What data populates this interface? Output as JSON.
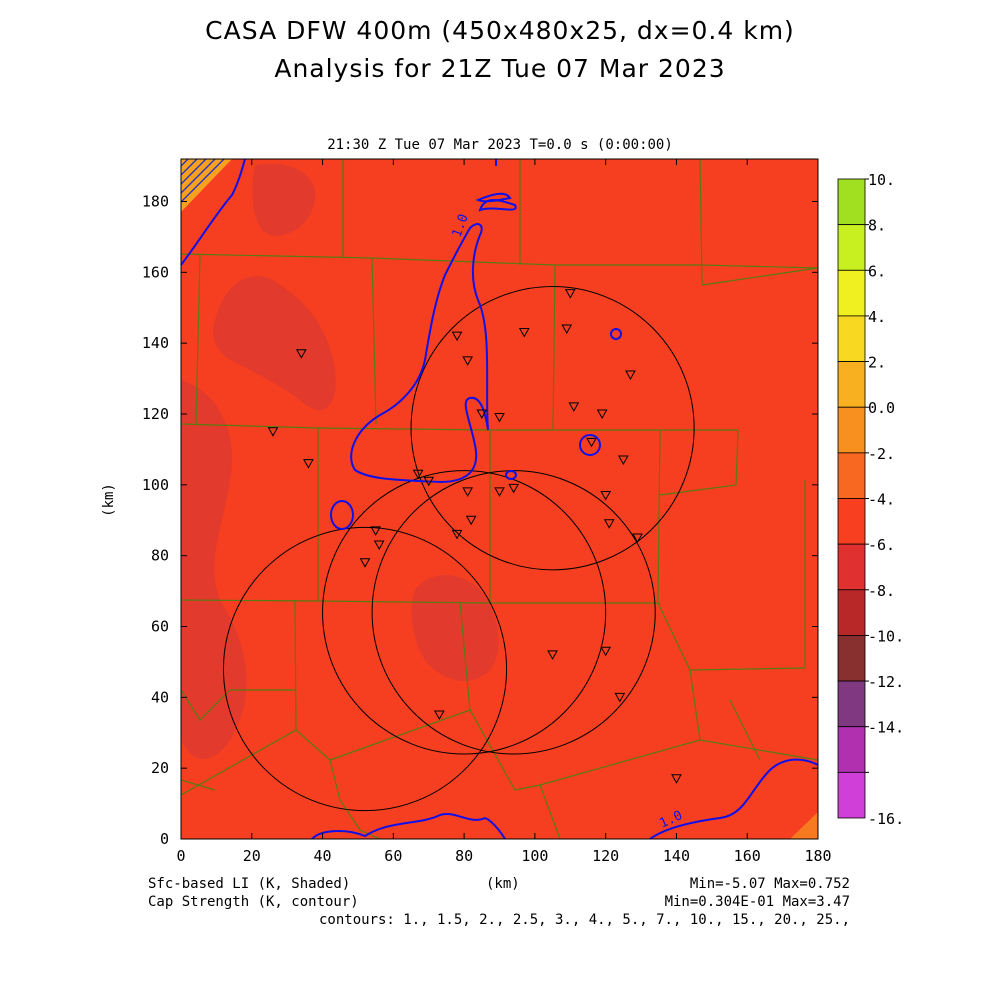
{
  "title": {
    "line1": "CASA DFW 400m (450x480x25, dx=0.4 km)",
    "line2": "Analysis for 21Z Tue 07 Mar 2023"
  },
  "panel": {
    "subtitle": "21:30 Z Tue 07 Mar 2023    T=0.0 s (0:00:00)",
    "xlabel": "(km)",
    "ylabel": "(km)",
    "xlim": [
      0,
      180
    ],
    "ylim": [
      0,
      192
    ],
    "xticks": [
      0,
      20,
      40,
      60,
      80,
      100,
      120,
      140,
      160,
      180
    ],
    "yticks": [
      0,
      20,
      40,
      60,
      80,
      100,
      120,
      140,
      160,
      180
    ],
    "xtick_labels": [
      "0",
      "20",
      "40",
      "60",
      "80",
      "100",
      "120",
      "140",
      "160",
      "180"
    ],
    "ytick_labels": [
      "0",
      "20",
      "40",
      "60",
      "80",
      "100",
      "120",
      "140",
      "160",
      "180"
    ]
  },
  "colorbar": {
    "levels": [
      10,
      8,
      6,
      4,
      2,
      0,
      -2,
      -4,
      -6,
      -8,
      -10,
      -12,
      -14,
      -16
    ],
    "labels": [
      "10.",
      "8.",
      "6.",
      "4.",
      "2.",
      "0.0",
      "-2.",
      "-4.",
      "-6.",
      "-8.",
      "-10.",
      "-12.",
      "-14.",
      "-16."
    ],
    "colors": [
      "#a0e020",
      "#c8f020",
      "#f0f020",
      "#f8d820",
      "#f8b020",
      "#f89020",
      "#f86820",
      "#f84020",
      "#e03030",
      "#b82828",
      "#883030",
      "#803880",
      "#b030b0",
      "#d040d8"
    ]
  },
  "field": {
    "background_color": "#f63f20",
    "darker_color": "#e23a2c",
    "contour_color": "#1010e8",
    "contour_label": "1.0"
  },
  "radars": [
    {
      "center": [
        105,
        116
      ],
      "radius": 40
    },
    {
      "center": [
        80,
        64
      ],
      "radius": 40
    },
    {
      "center": [
        94,
        64
      ],
      "radius": 40
    },
    {
      "center": [
        52,
        48
      ],
      "radius": 40
    }
  ],
  "stations": [
    [
      110,
      154
    ],
    [
      78,
      142
    ],
    [
      81,
      135
    ],
    [
      97,
      143
    ],
    [
      109,
      144
    ],
    [
      127,
      131
    ],
    [
      34,
      137
    ],
    [
      26,
      115
    ],
    [
      36,
      106
    ],
    [
      111,
      122
    ],
    [
      119,
      120
    ],
    [
      85,
      120
    ],
    [
      90,
      119
    ],
    [
      116,
      112
    ],
    [
      125,
      107
    ],
    [
      67,
      103
    ],
    [
      70,
      101
    ],
    [
      81,
      98
    ],
    [
      90,
      98
    ],
    [
      94,
      99
    ],
    [
      120,
      97
    ],
    [
      55,
      87
    ],
    [
      121,
      89
    ],
    [
      82,
      90
    ],
    [
      78,
      86
    ],
    [
      129,
      85
    ],
    [
      56,
      83
    ],
    [
      52,
      78
    ],
    [
      105,
      52
    ],
    [
      120,
      53
    ],
    [
      124,
      40
    ],
    [
      73,
      35
    ],
    [
      140,
      17
    ]
  ],
  "footer": {
    "left1": "Sfc-based LI (K, Shaded)",
    "left2": "Cap Strength (K, contour)",
    "center": "(km)",
    "right1": "Min=-5.07 Max=0.752",
    "right2": "Min=0.304E-01 Max=3.47",
    "right3": "contours: 1., 1.5, 2., 2.5, 3., 4., 5., 7., 10., 15., 20., 25.,"
  }
}
